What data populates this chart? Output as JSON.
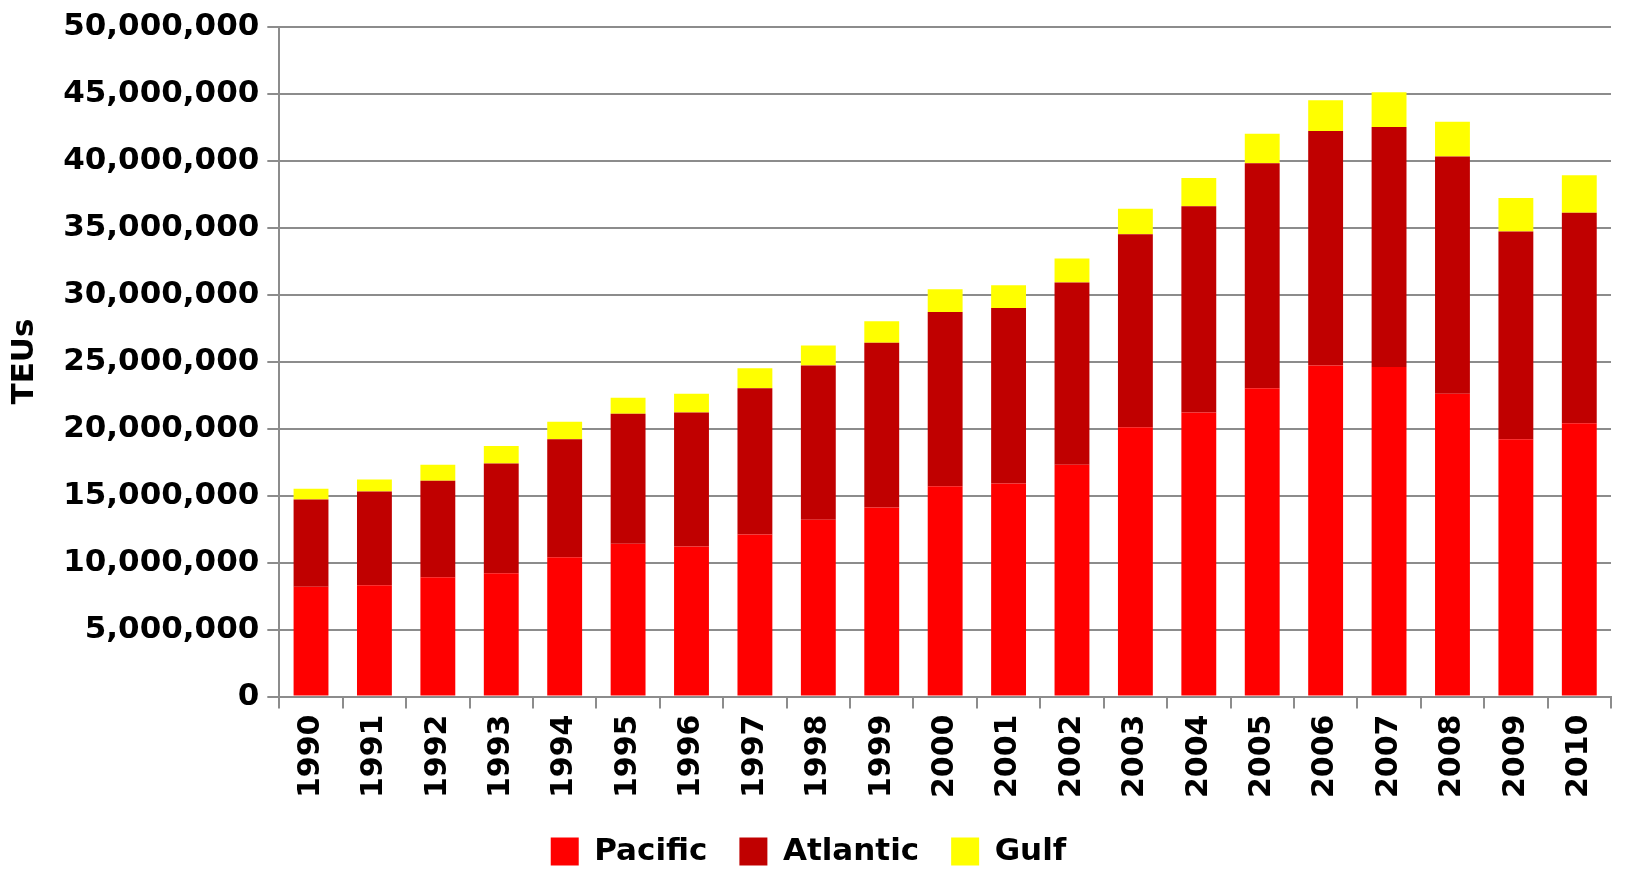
{
  "chart_data": {
    "type": "bar",
    "stacked": true,
    "ylabel": "TEUs",
    "categories": [
      "1990",
      "1991",
      "1992",
      "1993",
      "1994",
      "1995",
      "1996",
      "1997",
      "1998",
      "1999",
      "2000",
      "2001",
      "2002",
      "2003",
      "2004",
      "2005",
      "2006",
      "2007",
      "2008",
      "2009",
      "2010"
    ],
    "series": [
      {
        "name": "Pacific",
        "color": "#ff0000",
        "values": [
          8200000,
          8300000,
          8900000,
          9200000,
          10400000,
          11400000,
          11200000,
          12100000,
          13200000,
          14100000,
          15700000,
          15900000,
          17300000,
          20100000,
          21200000,
          23000000,
          24700000,
          24600000,
          22600000,
          19200000,
          20400000
        ]
      },
      {
        "name": "Atlantic",
        "color": "#c00000",
        "values": [
          6500000,
          7000000,
          7200000,
          8200000,
          8800000,
          9700000,
          10000000,
          10900000,
          11500000,
          12300000,
          13000000,
          13100000,
          13600000,
          14400000,
          15400000,
          16800000,
          17500000,
          17900000,
          17700000,
          15500000,
          15700000
        ]
      },
      {
        "name": "Gulf",
        "color": "#ffff00",
        "values": [
          800000,
          900000,
          1200000,
          1300000,
          1300000,
          1200000,
          1400000,
          1500000,
          1500000,
          1600000,
          1700000,
          1700000,
          1800000,
          1900000,
          2100000,
          2200000,
          2300000,
          2600000,
          2600000,
          2500000,
          2800000
        ]
      }
    ],
    "ylim": [
      0,
      50000000
    ],
    "yticks": [
      0,
      {
        "value": 5000000,
        "label": "5,000,000"
      },
      {
        "value": 10000000,
        "label": "10,000,000"
      },
      {
        "value": 15000000,
        "label": "15,000,000"
      },
      {
        "value": 20000000,
        "label": "20,000,000"
      },
      {
        "value": 25000000,
        "label": "25,000,000"
      },
      {
        "value": 30000000,
        "label": "30,000,000"
      },
      {
        "value": 35000000,
        "label": "35,000,000"
      },
      {
        "value": 40000000,
        "label": "40,000,000"
      },
      {
        "value": 45000000,
        "label": "45,000,000"
      },
      {
        "value": 50000000,
        "label": "50,000,000"
      }
    ],
    "grid": "y",
    "legend": "bottom"
  }
}
